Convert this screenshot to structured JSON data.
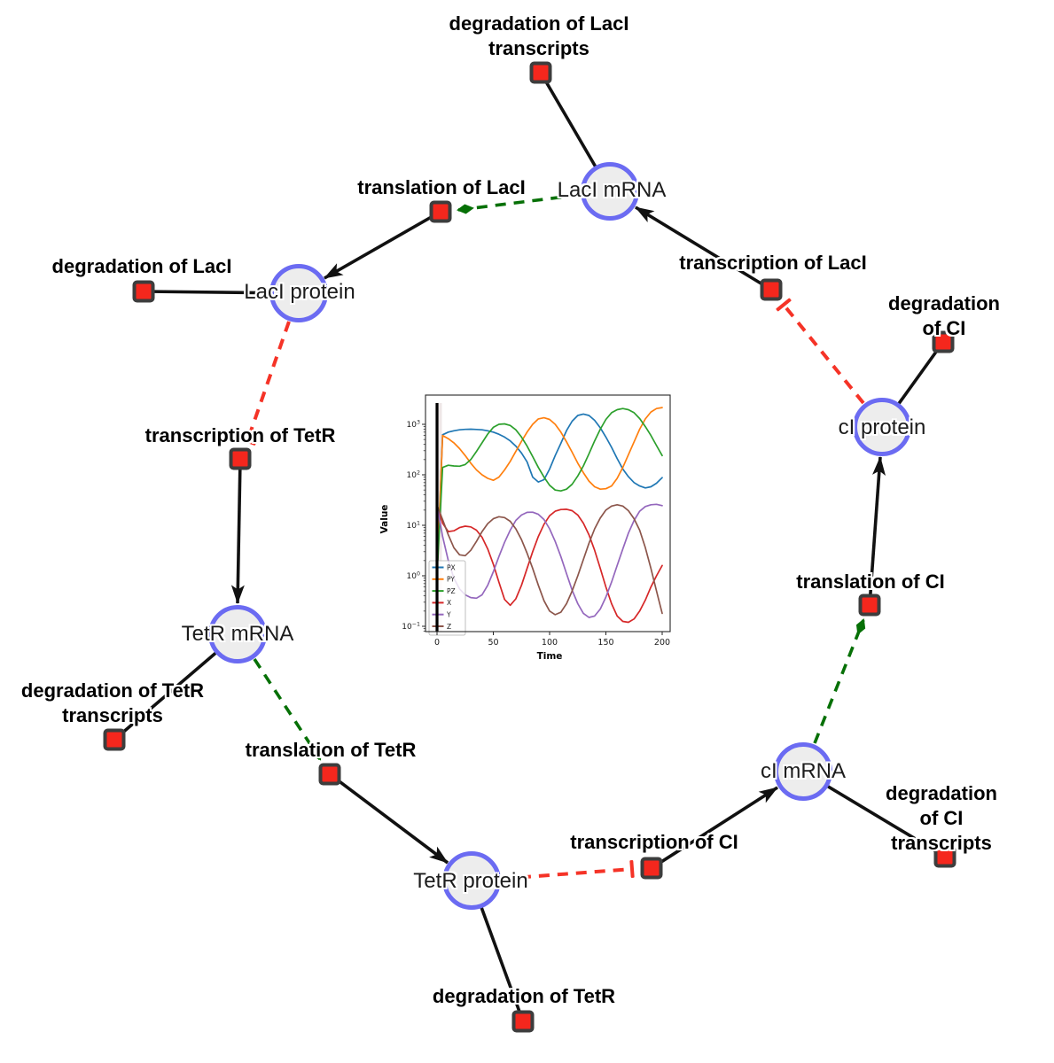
{
  "diagram": {
    "species": [
      {
        "label": "LacI mRNA"
      },
      {
        "label": "LacI protein"
      },
      {
        "label": "TetR mRNA"
      },
      {
        "label": "TetR protein"
      },
      {
        "label": "cI mRNA"
      },
      {
        "label": "cI protein"
      }
    ],
    "reactions": [
      {
        "label": "degradation of LacI\ntranscripts"
      },
      {
        "label": "translation of LacI"
      },
      {
        "label": "transcription of LacI"
      },
      {
        "label": "degradation of LacI"
      },
      {
        "label": "transcription of TetR"
      },
      {
        "label": "degradation of TetR\ntranscripts"
      },
      {
        "label": "translation of TetR"
      },
      {
        "label": "degradation of TetR"
      },
      {
        "label": "transcription of CI"
      },
      {
        "label": "degradation of CI\ntranscripts"
      },
      {
        "label": "translation of CI"
      },
      {
        "label": "degradation of CI"
      }
    ],
    "colors": {
      "species_border": "#6b6bf2",
      "species_fill": "#ededed",
      "reaction_fill": "#f5271d",
      "reaction_border": "#3d3d3d",
      "edge": "#111111",
      "activation": "#067006",
      "inhibition": "#f53327"
    }
  },
  "chart_data": {
    "type": "line",
    "title": "",
    "xlabel": "Time",
    "ylabel": "Value",
    "y_scale": "log",
    "xlim": [
      -10,
      207
    ],
    "ylim": [
      0.078,
      3800
    ],
    "x_ticks": [
      0,
      50,
      100,
      150,
      200
    ],
    "y_tick_exponents": [
      -1,
      0,
      1,
      2,
      3
    ],
    "legend_position": "lower left",
    "grid": false,
    "init_line_x": 0,
    "x": [
      0,
      5,
      10,
      15,
      20,
      25,
      30,
      35,
      40,
      45,
      50,
      55,
      60,
      65,
      70,
      75,
      80,
      85,
      90,
      95,
      100,
      105,
      110,
      115,
      120,
      125,
      130,
      135,
      140,
      145,
      150,
      155,
      160,
      165,
      170,
      175,
      180,
      185,
      190,
      195,
      200
    ],
    "series": [
      {
        "name": "PX",
        "color": "#1f77b4",
        "values": [
          1,
          620,
          700,
          745,
          780,
          795,
          800,
          790,
          780,
          745,
          700,
          635,
          560,
          470,
          370,
          270,
          180,
          90,
          72,
          80,
          130,
          240,
          420,
          750,
          1150,
          1500,
          1600,
          1500,
          1200,
          850,
          560,
          350,
          210,
          130,
          92,
          70,
          60,
          55,
          58,
          68,
          88
        ]
      },
      {
        "name": "PY",
        "color": "#ff7f0e",
        "values": [
          1,
          600,
          520,
          430,
          330,
          240,
          170,
          125,
          100,
          85,
          78,
          90,
          125,
          185,
          290,
          460,
          700,
          1000,
          1280,
          1350,
          1250,
          1000,
          700,
          450,
          280,
          170,
          110,
          75,
          58,
          52,
          53,
          60,
          85,
          140,
          250,
          450,
          800,
          1280,
          1750,
          2050,
          2150
        ]
      },
      {
        "name": "PZ",
        "color": "#2ca02c",
        "values": [
          1,
          140,
          155,
          150,
          148,
          160,
          200,
          290,
          430,
          640,
          870,
          1000,
          1020,
          950,
          780,
          560,
          370,
          230,
          140,
          90,
          62,
          50,
          48,
          52,
          65,
          95,
          150,
          260,
          470,
          800,
          1250,
          1700,
          1950,
          2050,
          1950,
          1700,
          1300,
          900,
          600,
          380,
          240
        ]
      },
      {
        "name": "X",
        "color": "#d62728",
        "values": [
          25,
          11,
          7.5,
          7.8,
          9,
          9.6,
          9.3,
          8,
          5.8,
          3.4,
          1.7,
          0.75,
          0.34,
          0.26,
          0.35,
          0.65,
          1.4,
          3,
          6,
          10.5,
          15.5,
          19,
          20.5,
          20.8,
          19.5,
          16,
          11,
          6.5,
          3.2,
          1.4,
          0.6,
          0.28,
          0.16,
          0.125,
          0.12,
          0.14,
          0.2,
          0.33,
          0.6,
          1,
          1.6
        ]
      },
      {
        "name": "Y",
        "color": "#9467bd",
        "values": [
          25,
          6,
          2,
          0.9,
          0.55,
          0.42,
          0.37,
          0.36,
          0.42,
          0.65,
          1.2,
          2.4,
          4.6,
          8,
          12.5,
          16,
          18,
          18.2,
          16.5,
          13,
          8.5,
          4.8,
          2.4,
          1.1,
          0.52,
          0.28,
          0.18,
          0.15,
          0.16,
          0.22,
          0.38,
          0.75,
          1.6,
          3.4,
          7,
          12.5,
          19,
          23.5,
          25.5,
          26,
          24.5
        ]
      },
      {
        "name": "Z",
        "color": "#8c564b",
        "values": [
          25,
          13,
          6.5,
          3.6,
          2.6,
          2.5,
          3.2,
          4.8,
          7.5,
          10.8,
          13.5,
          14.8,
          14.2,
          12,
          8.5,
          5.2,
          2.8,
          1.4,
          0.65,
          0.32,
          0.2,
          0.17,
          0.19,
          0.28,
          0.5,
          1,
          2.1,
          4.4,
          8.5,
          14,
          20,
          24,
          25.5,
          24,
          19.5,
          13.5,
          8,
          3.6,
          1.4,
          0.5,
          0.18
        ]
      }
    ]
  }
}
